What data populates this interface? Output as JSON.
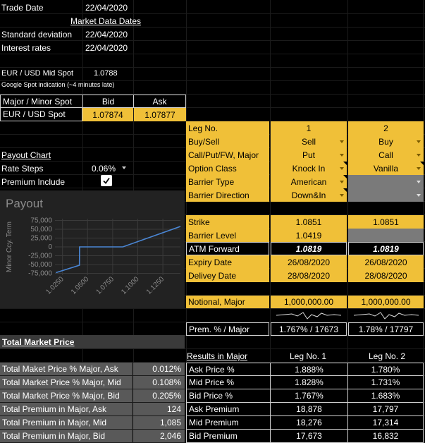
{
  "top": {
    "trade_date_label": "Trade Date",
    "trade_date": "22/04/2020",
    "market_data_dates": "Market Data Dates",
    "std_dev_label": "Standard deviation",
    "std_dev_date": "22/04/2020",
    "interest_label": "Interest rates",
    "interest_date": "22/04/2020",
    "mid_spot_label": "EUR / USD Mid Spot",
    "mid_spot": "1.0788",
    "google_note": "Google Spot indication (~4 minutes late)"
  },
  "spot_table": {
    "h_label": "Major / Minor Spot",
    "h_bid": "Bid",
    "h_ask": "Ask",
    "row_label": "EUR / USD Spot",
    "bid": "1.07874",
    "ask": "1.07877"
  },
  "left_panel": {
    "payout_chart": "Payout Chart",
    "rate_steps_label": "Rate Steps",
    "rate_steps": "0.06%",
    "premium_include_label": "Premium Include",
    "premium_include_checked": true
  },
  "legs": {
    "rows": [
      {
        "label": "Leg No.",
        "v1": "1",
        "v2": "2"
      },
      {
        "label": "Buy/Sell",
        "v1": "Sell",
        "v2": "Buy"
      },
      {
        "label": "Call/Put/FW, Major",
        "v1": "Put",
        "v2": "Call"
      },
      {
        "label": "Option Class",
        "v1": "Knock In",
        "v2": "Vanilla"
      },
      {
        "label": "Barrier Type",
        "v1": "American",
        "v2": ""
      },
      {
        "label": "Barrier Direction",
        "v1": "Down&In",
        "v2": ""
      },
      {
        "label": "Strike",
        "v1": "1.0851",
        "v2": "1.0851"
      },
      {
        "label": "Barrier Level",
        "v1": "1.0419",
        "v2": ""
      },
      {
        "label": "ATM Forward",
        "v1": "1.0819",
        "v2": "1.0819"
      },
      {
        "label": "Expiry Date",
        "v1": "26/08/2020",
        "v2": "26/08/2020"
      },
      {
        "label": "Delivey Date",
        "v1": "28/08/2020",
        "v2": "28/08/2020"
      },
      {
        "label": "Notional, Major",
        "v1": "1,000,000.00",
        "v2": "1,000,000.00"
      },
      {
        "label": "Prem. % / Major",
        "v1": "1.767% / 17673",
        "v2": "1.78% / 17797"
      }
    ]
  },
  "chart_data": {
    "type": "line",
    "title": "Payout",
    "ylabel": "Minor Ccy. Term",
    "xlabel": "",
    "x_ticks": [
      "1.0250",
      "1.0500",
      "1.0750",
      "1.1000",
      "1.1250"
    ],
    "y_ticks": [
      "75,000",
      "50,000",
      "25,000",
      "0",
      "-25,000",
      "-50,000",
      "-75,000"
    ],
    "xlim": [
      1.0175,
      1.1425
    ],
    "ylim": [
      -80000,
      80000
    ],
    "grid": true,
    "series": [
      {
        "color": "#4a86d4",
        "x": [
          1.0185,
          1.0419,
          1.042,
          1.0851,
          1.1425
        ],
        "y": [
          -73000,
          -52000,
          0,
          0,
          58000
        ]
      }
    ]
  },
  "total_market": {
    "title": "Total Market Price",
    "rows": [
      {
        "label": "Total Maket Price % Major, Ask",
        "value": "0.012%"
      },
      {
        "label": "Total Market Price % Major, Mid",
        "value": "0.108%"
      },
      {
        "label": "Total Market Price % Major, Bid",
        "value": "0.205%"
      },
      {
        "label": "Total Premium in Major, Ask",
        "value": "124"
      },
      {
        "label": "Total Premium in Major, Mid",
        "value": "1,085"
      },
      {
        "label": "Total Premium in Major, Bid",
        "value": "2,046"
      }
    ]
  },
  "results": {
    "title": "Results in Major",
    "leg1": "Leg No. 1",
    "leg2": "Leg No. 2",
    "rows": [
      {
        "label": "Ask Price %",
        "v1": "1.888%",
        "v2": "1.780%"
      },
      {
        "label": "Mid Price %",
        "v1": "1.828%",
        "v2": "1.731%"
      },
      {
        "label": "Bid Price %",
        "v1": "1.767%",
        "v2": "1.683%"
      },
      {
        "label": "Ask Premium",
        "v1": "18,878",
        "v2": "17,797"
      },
      {
        "label": "Mid Premium",
        "v1": "18,276",
        "v2": "17,314"
      },
      {
        "label": "Bid Premium",
        "v1": "17,673",
        "v2": "16,832"
      }
    ]
  },
  "colors": {
    "gold": "#f0c038",
    "grey": "#595959",
    "line": "#4a86d4"
  }
}
